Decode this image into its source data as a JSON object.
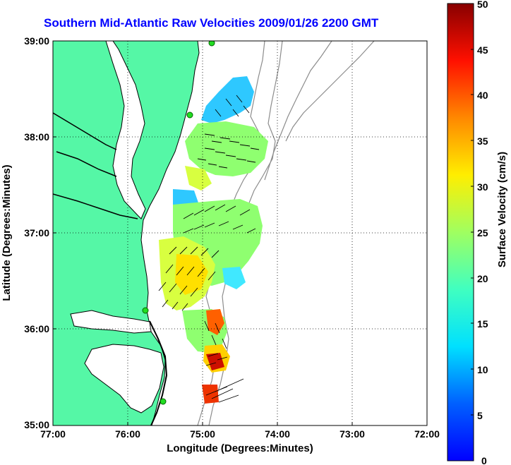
{
  "title": "Southern Mid-Atlantic Raw Velocities 2009/01/26 2200 GMT",
  "map": {
    "xlabel": "Longitude (Degrees:Minutes)",
    "ylabel": "Latitude (Degrees:Minutes)",
    "x_ticks": [
      "77:00",
      "76:00",
      "75:00",
      "74:00",
      "73:00",
      "72:00"
    ],
    "y_ticks": [
      "39:00",
      "38:00",
      "37:00",
      "36:00",
      "35:00"
    ],
    "colors": {
      "land": "#55f7a6",
      "water": "#ffffff",
      "bathymetry": "#8c8c8c",
      "coastline": "#000000",
      "station": "#22dd22"
    }
  },
  "colorbar": {
    "label": "Surface Velocity (cm/s)",
    "ticks": [
      "50",
      "45",
      "40",
      "35",
      "30",
      "25",
      "20",
      "15",
      "10",
      "5",
      "0"
    ]
  }
}
